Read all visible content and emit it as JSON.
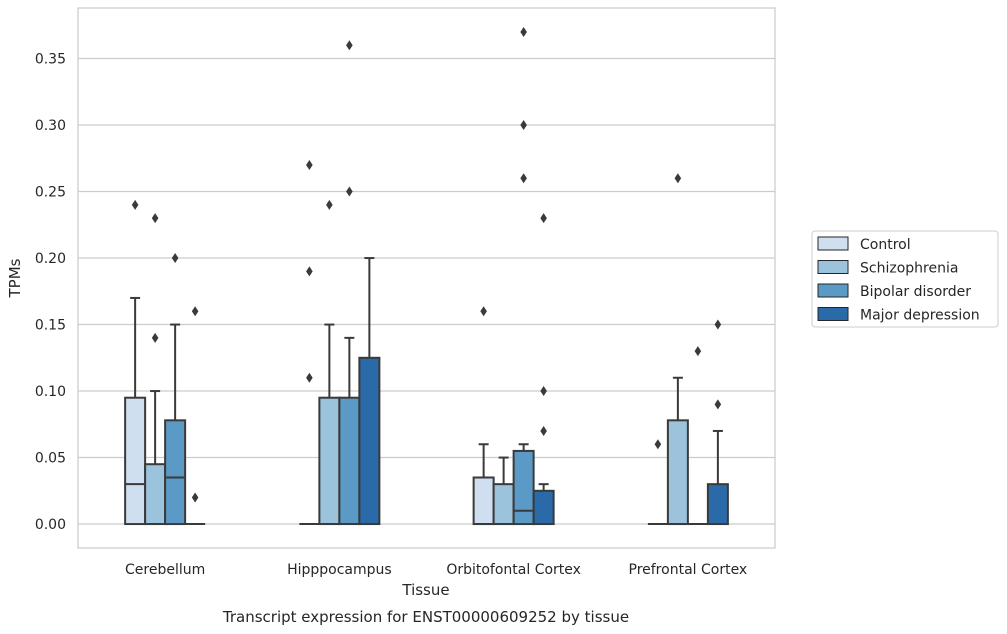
{
  "caption": "Transcript expression for ENST00000609252 by tissue",
  "chart_data": {
    "type": "boxplot",
    "xlabel": "Tissue",
    "ylabel": "TPMs",
    "ylim": [
      -0.018,
      0.388
    ],
    "yticks": [
      "0.00",
      "0.05",
      "0.10",
      "0.15",
      "0.20",
      "0.25",
      "0.30",
      "0.35"
    ],
    "grid": "horizontal",
    "legend_position": "right",
    "categories": [
      "Cerebellum",
      "Hipppocampus",
      "Orbitofontal Cortex",
      "Prefrontal Cortex"
    ],
    "series": [
      {
        "name": "Control",
        "color": "#d0dff0",
        "boxes": [
          {
            "q1": 0,
            "median": 0.03,
            "q3": 0.095,
            "whisker_low": 0,
            "whisker_high": 0.17,
            "outliers": [
              0.24
            ]
          },
          {
            "q1": 0,
            "median": 0,
            "q3": 0,
            "whisker_low": 0,
            "whisker_high": 0,
            "outliers": [
              0.11,
              0.19,
              0.27
            ]
          },
          {
            "q1": 0,
            "median": 0,
            "q3": 0.035,
            "whisker_low": 0,
            "whisker_high": 0.06,
            "outliers": [
              0.16
            ]
          },
          {
            "q1": 0,
            "median": 0,
            "q3": 0,
            "whisker_low": 0,
            "whisker_high": 0,
            "outliers": [
              0.06
            ]
          }
        ]
      },
      {
        "name": "Schizophrenia",
        "color": "#9cc3dc",
        "boxes": [
          {
            "q1": 0,
            "median": 0,
            "q3": 0.045,
            "whisker_low": 0,
            "whisker_high": 0.1,
            "outliers": [
              0.14,
              0.23
            ]
          },
          {
            "q1": 0,
            "median": 0,
            "q3": 0.095,
            "whisker_low": 0,
            "whisker_high": 0.15,
            "outliers": [
              0.24
            ]
          },
          {
            "q1": 0,
            "median": 0,
            "q3": 0.03,
            "whisker_low": 0,
            "whisker_high": 0.05,
            "outliers": []
          },
          {
            "q1": 0,
            "median": 0,
            "q3": 0.078,
            "whisker_low": 0,
            "whisker_high": 0.11,
            "outliers": [
              0.26
            ]
          }
        ]
      },
      {
        "name": "Bipolar disorder",
        "color": "#5b9ac6",
        "boxes": [
          {
            "q1": 0,
            "median": 0.035,
            "q3": 0.078,
            "whisker_low": 0,
            "whisker_high": 0.15,
            "outliers": [
              0.2
            ]
          },
          {
            "q1": 0,
            "median": 0,
            "q3": 0.095,
            "whisker_low": 0,
            "whisker_high": 0.14,
            "outliers": [
              0.25,
              0.36
            ]
          },
          {
            "q1": 0,
            "median": 0.01,
            "q3": 0.055,
            "whisker_low": 0,
            "whisker_high": 0.06,
            "outliers": [
              0.26,
              0.3,
              0.37
            ]
          },
          {
            "q1": 0,
            "median": 0,
            "q3": 0,
            "whisker_low": 0,
            "whisker_high": 0,
            "outliers": [
              0.13
            ]
          }
        ]
      },
      {
        "name": "Major depression",
        "color": "#2a6aa8",
        "boxes": [
          {
            "q1": 0,
            "median": 0,
            "q3": 0,
            "whisker_low": 0,
            "whisker_high": 0,
            "outliers": [
              0.02,
              0.16
            ]
          },
          {
            "q1": 0,
            "median": 0,
            "q3": 0.125,
            "whisker_low": 0,
            "whisker_high": 0.2,
            "outliers": []
          },
          {
            "q1": 0,
            "median": 0,
            "q3": 0.025,
            "whisker_low": 0,
            "whisker_high": 0.03,
            "outliers": [
              0.07,
              0.1,
              0.23
            ]
          },
          {
            "q1": 0,
            "median": 0,
            "q3": 0.03,
            "whisker_low": 0,
            "whisker_high": 0.07,
            "outliers": [
              0.09,
              0.15
            ]
          }
        ]
      }
    ]
  }
}
